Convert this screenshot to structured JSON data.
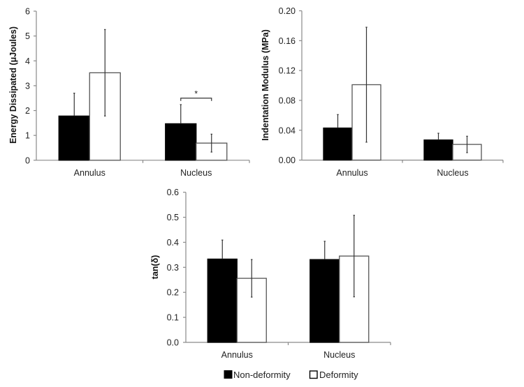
{
  "chart_data": [
    {
      "type": "bar",
      "id": "energy",
      "title": "",
      "xlabel": "",
      "ylabel": "Energy Dissipated (μJoules)",
      "categories": [
        "Annulus",
        "Nucleus"
      ],
      "ylim": [
        0,
        6
      ],
      "yticks": [
        0,
        1,
        2,
        3,
        4,
        5,
        6
      ],
      "ytick_labels": [
        "0",
        "1",
        "2",
        "3",
        "4",
        "5",
        "6"
      ],
      "series": [
        {
          "name": "Non-deformity",
          "color": "#000000",
          "values": [
            1.78,
            1.47
          ],
          "errors": [
            0.92,
            0.77
          ]
        },
        {
          "name": "Deformity",
          "color": "#ffffff",
          "values": [
            3.52,
            0.69
          ],
          "errors": [
            1.74,
            0.36
          ]
        }
      ],
      "annotations": [
        {
          "type": "significance",
          "category": "Nucleus",
          "label": "*",
          "level": 2.5
        }
      ],
      "grid": false
    },
    {
      "type": "bar",
      "id": "modulus",
      "title": "",
      "xlabel": "",
      "ylabel": "Indentation Modulus (MPa)",
      "categories": [
        "Annulus",
        "Nucleus"
      ],
      "ylim": [
        0,
        0.2
      ],
      "yticks": [
        0,
        0.04,
        0.08,
        0.12,
        0.16,
        0.2
      ],
      "ytick_labels": [
        "0.00",
        "0.04",
        "0.08",
        "0.12",
        "0.16",
        "0.20"
      ],
      "series": [
        {
          "name": "Non-deformity",
          "color": "#000000",
          "values": [
            0.043,
            0.027
          ],
          "errors": [
            0.018,
            0.009
          ]
        },
        {
          "name": "Deformity",
          "color": "#ffffff",
          "values": [
            0.101,
            0.021
          ],
          "errors": [
            0.077,
            0.011
          ]
        }
      ],
      "annotations": [],
      "grid": false
    },
    {
      "type": "bar",
      "id": "tandelta",
      "title": "",
      "xlabel": "",
      "ylabel": "tan(δ)",
      "categories": [
        "Annulus",
        "Nucleus"
      ],
      "ylim": [
        0,
        0.6
      ],
      "yticks": [
        0,
        0.1,
        0.2,
        0.3,
        0.4,
        0.5,
        0.6
      ],
      "ytick_labels": [
        "0.0",
        "0.1",
        "0.2",
        "0.3",
        "0.4",
        "0.5",
        "0.6"
      ],
      "series": [
        {
          "name": "Non-deformity",
          "color": "#000000",
          "values": [
            0.333,
            0.331
          ],
          "errors": [
            0.076,
            0.073
          ]
        },
        {
          "name": "Deformity",
          "color": "#ffffff",
          "values": [
            0.256,
            0.345
          ],
          "errors": [
            0.075,
            0.163
          ]
        }
      ],
      "annotations": [],
      "grid": false
    }
  ],
  "legend": {
    "placement": "bottom-center",
    "items": [
      {
        "label": "Non-deformity",
        "color": "#000000"
      },
      {
        "label": "Deformity",
        "color": "#ffffff"
      }
    ]
  }
}
